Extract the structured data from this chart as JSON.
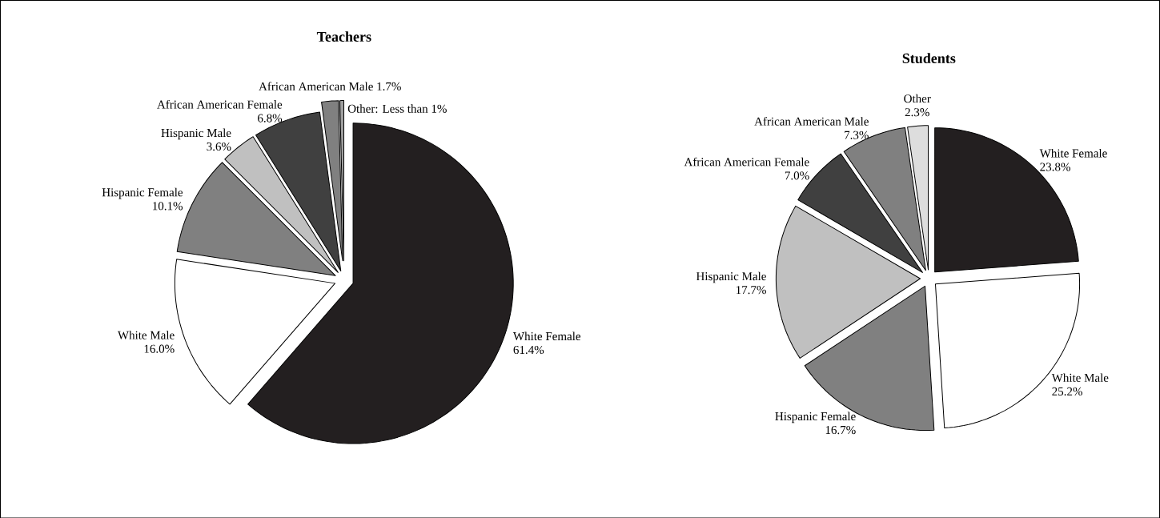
{
  "chart_data": [
    {
      "type": "pie",
      "title": "Teachers",
      "categories": [
        "White Female",
        "White Male",
        "Hispanic Female",
        "Hispanic Male",
        "African American Female",
        "African American Male",
        "Other: Less than 1%"
      ],
      "values": [
        61.4,
        16.0,
        10.1,
        3.6,
        6.8,
        1.7,
        0.4
      ],
      "value_labels": [
        "61.4%",
        "16.0%",
        "10.1%",
        "3.6%",
        "6.8%",
        "1.7%",
        null
      ],
      "colors": [
        "#231f20",
        "#ffffff",
        "#808080",
        "#c0c0c0",
        "#404040",
        "#808080",
        "#a0a0a0"
      ]
    },
    {
      "type": "pie",
      "title": "Students",
      "categories": [
        "White Female",
        "White Male",
        "Hispanic Female",
        "Hispanic Male",
        "African American Female",
        "African American Male",
        "Other"
      ],
      "values": [
        23.8,
        25.2,
        16.7,
        17.7,
        7.0,
        7.3,
        2.3
      ],
      "value_labels": [
        "23.8%",
        "25.2%",
        "16.7%",
        "17.7%",
        "7.0%",
        "7.3%",
        "2.3%"
      ],
      "colors": [
        "#231f20",
        "#ffffff",
        "#808080",
        "#c0c0c0",
        "#404040",
        "#808080",
        "#dddddd"
      ]
    }
  ]
}
